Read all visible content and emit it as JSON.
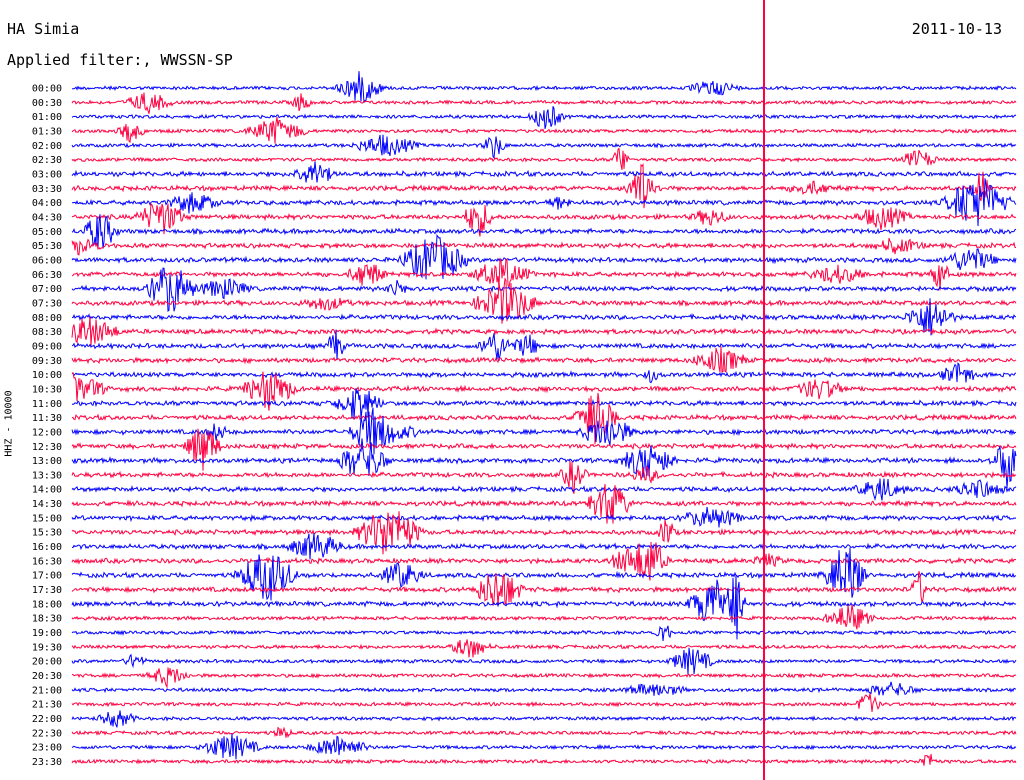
{
  "header": {
    "station": "HA Simia",
    "date": "2011-10-13",
    "filter": "Applied filter:, WWSSN-SP"
  },
  "chart_data": {
    "type": "line",
    "title": "HA Simia",
    "ylabel": "HHZ - 10000",
    "time_labels": [
      "00:00",
      "00:30",
      "01:00",
      "01:30",
      "02:00",
      "02:30",
      "03:00",
      "03:30",
      "04:00",
      "04:30",
      "05:00",
      "05:30",
      "06:00",
      "06:30",
      "07:00",
      "07:30",
      "08:00",
      "08:30",
      "09:00",
      "09:30",
      "10:00",
      "10:30",
      "11:00",
      "11:30",
      "12:00",
      "12:30",
      "13:00",
      "13:30",
      "14:00",
      "14:30",
      "15:00",
      "15:30",
      "16:00",
      "16:30",
      "17:00",
      "17:30",
      "18:00",
      "18:30",
      "19:00",
      "19:30",
      "20:00",
      "20:30",
      "21:00",
      "21:30",
      "22:00",
      "22:30",
      "23:00",
      "23:30"
    ],
    "trace_colors": [
      "#0000ff",
      "#ff0040"
    ],
    "vertical_marker_color": "#ff0040"
  }
}
